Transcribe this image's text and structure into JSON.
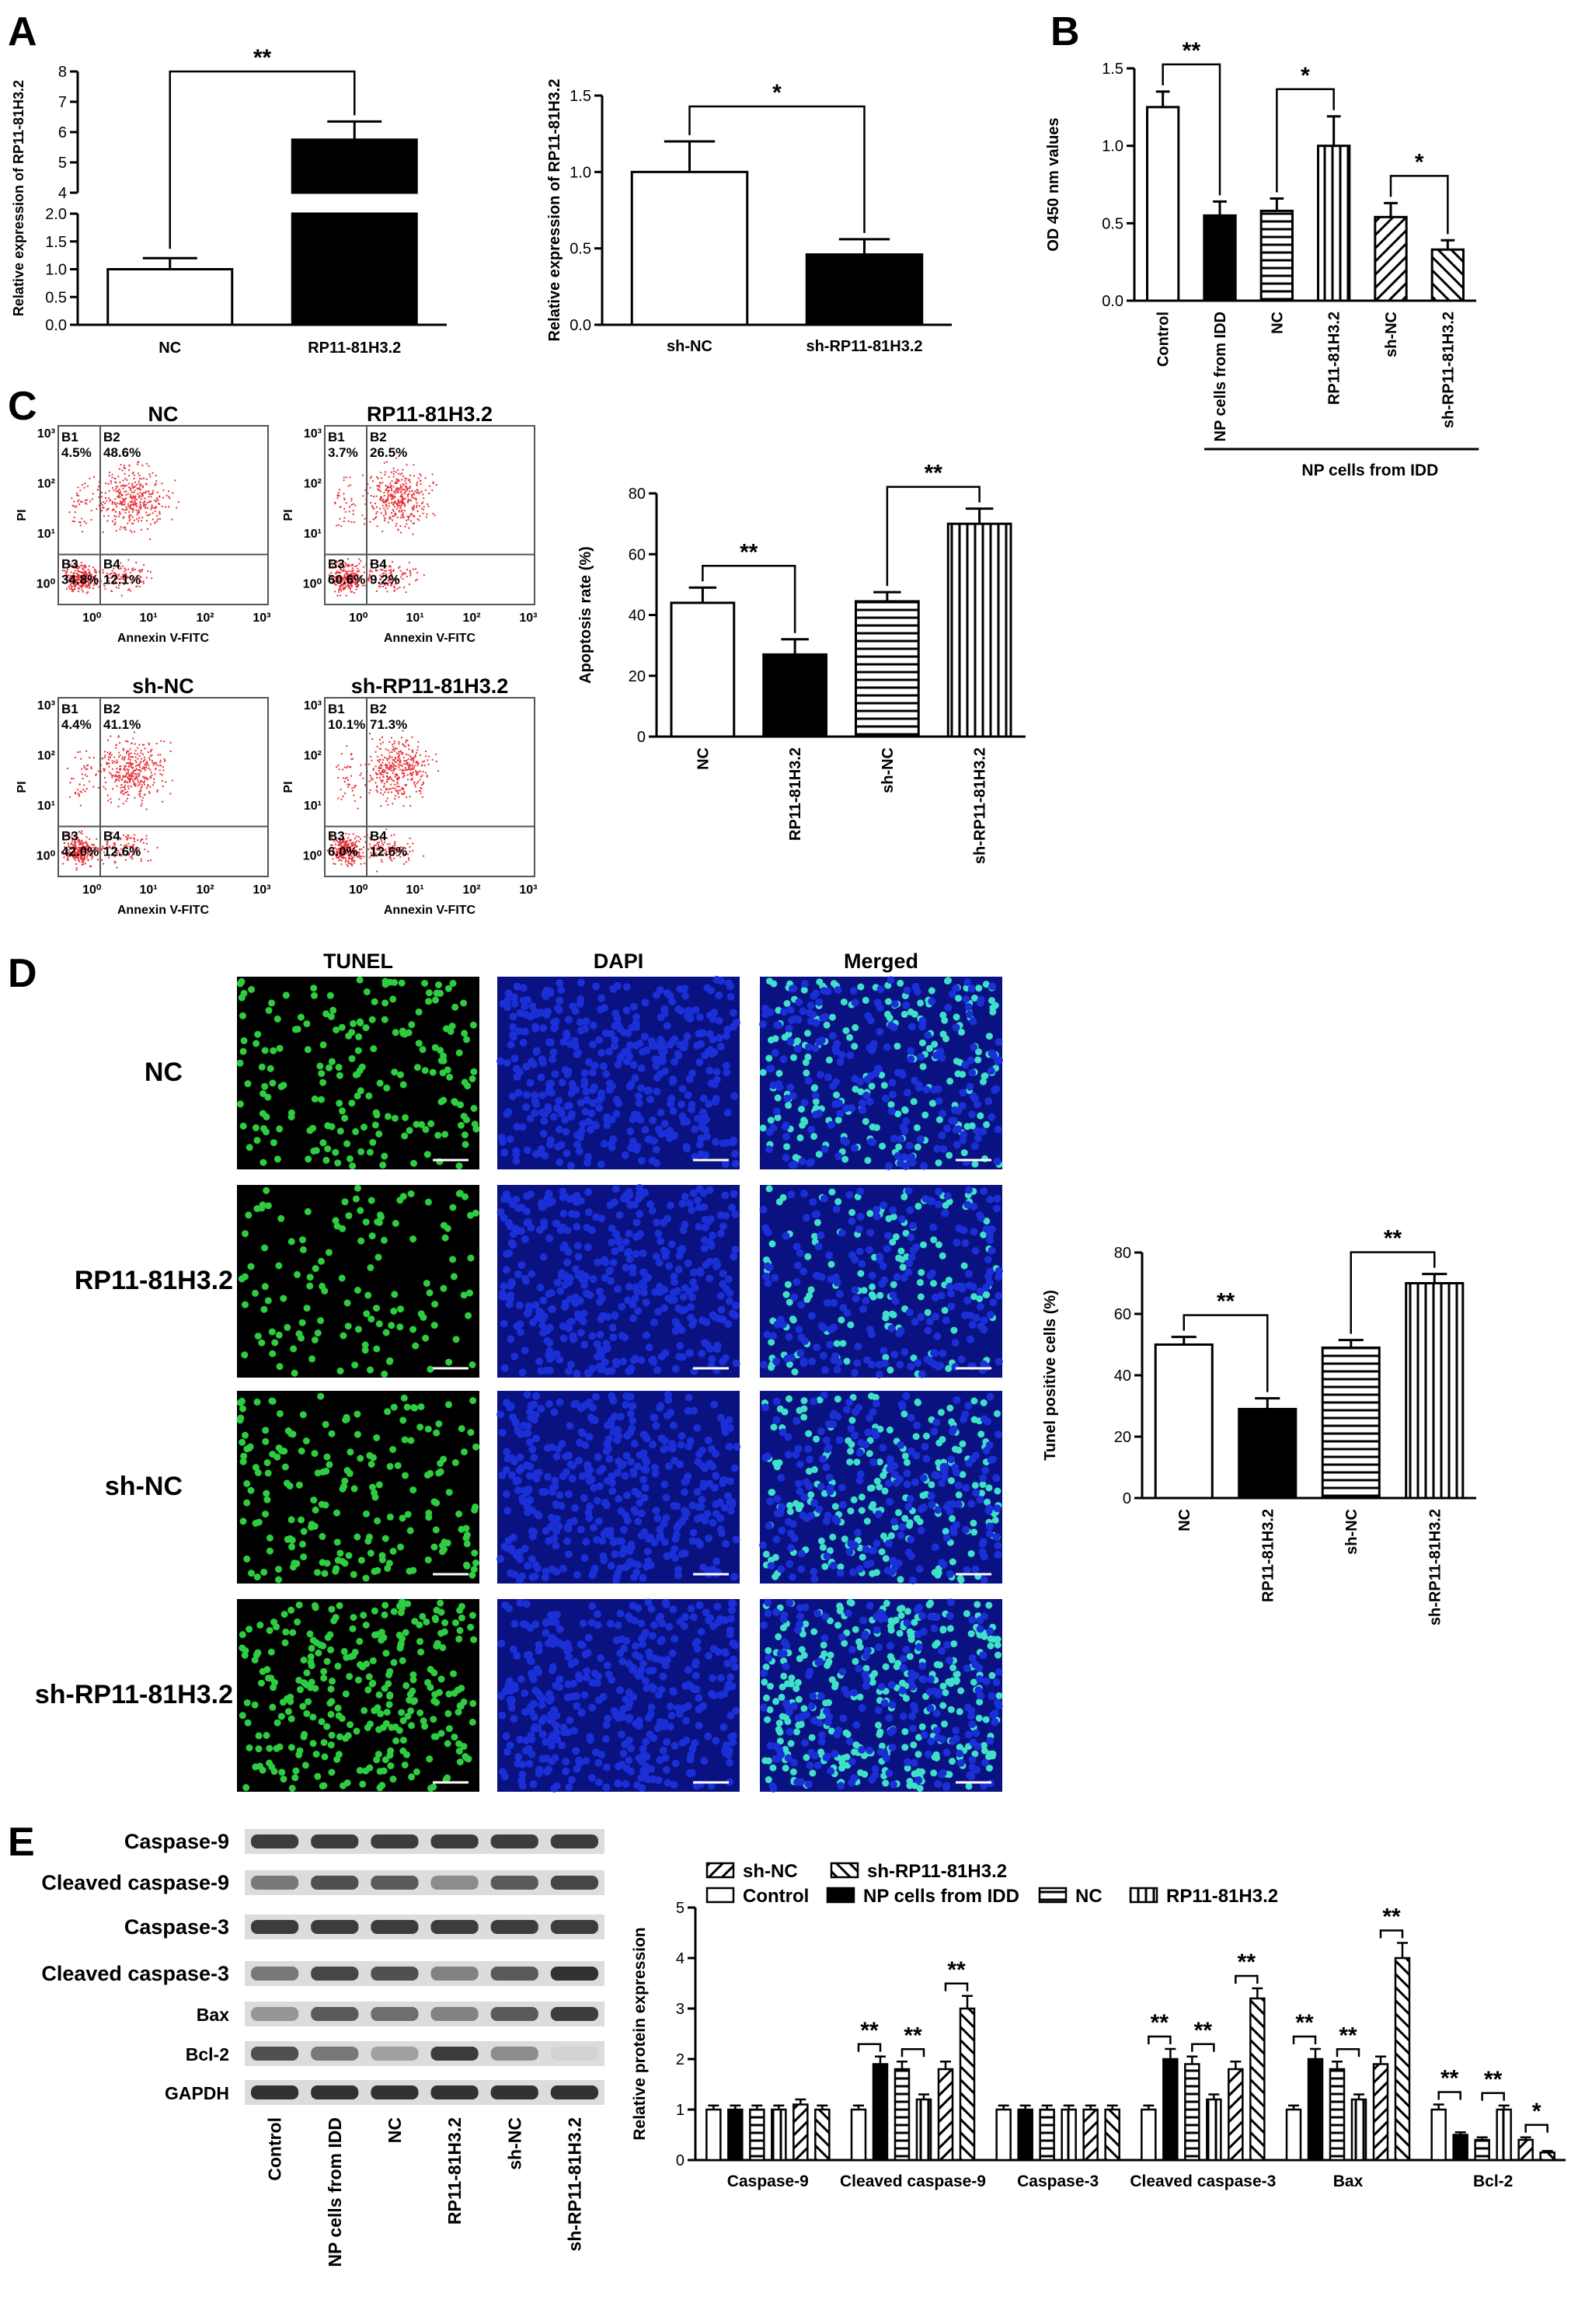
{
  "panels": {
    "A": {
      "letter": "A"
    },
    "B": {
      "letter": "B"
    },
    "C": {
      "letter": "C"
    },
    "D": {
      "letter": "D"
    },
    "E": {
      "letter": "E"
    }
  },
  "colors": {
    "black": "#000000",
    "white": "#ffffff",
    "flow_dot": "#e8333a",
    "tunel_green": "#2ecc40",
    "dapi_blue": "#1a2fd6",
    "merged_cyan": "#3fe0c8"
  },
  "chart_data": [
    {
      "id": "A1",
      "type": "bar",
      "categories": [
        "NC",
        "RP11-81H3.2"
      ],
      "values": [
        1.0,
        5.75
      ],
      "errors": [
        0.2,
        0.6
      ],
      "fills": [
        "white",
        "black"
      ],
      "ylabel": "Relative expression of RP11-81H3.2",
      "axis_break": {
        "lower": [
          0,
          2.0
        ],
        "upper": [
          4,
          8
        ]
      },
      "ticks_lower": [
        "0.0",
        "0.5",
        "1.0",
        "1.5",
        "2.0"
      ],
      "ticks_upper": [
        "4",
        "5",
        "6",
        "7",
        "8"
      ],
      "significance": [
        {
          "from": 0,
          "to": 1,
          "label": "**"
        }
      ]
    },
    {
      "id": "A2",
      "type": "bar",
      "categories": [
        "sh-NC",
        "sh-RP11-81H3.2"
      ],
      "values": [
        1.0,
        0.46
      ],
      "errors": [
        0.2,
        0.1
      ],
      "fills": [
        "white",
        "black"
      ],
      "ylabel": "Relative expression of RP11-81H3.2",
      "ylim": [
        0,
        1.5
      ],
      "ticks": [
        "0.0",
        "0.5",
        "1.0",
        "1.5"
      ],
      "significance": [
        {
          "from": 0,
          "to": 1,
          "label": "*"
        }
      ]
    },
    {
      "id": "B",
      "type": "bar",
      "categories": [
        "Control",
        "NP cells from IDD",
        "NC",
        "RP11-81H3.2",
        "sh-NC",
        "sh-RP11-81H3.2"
      ],
      "values": [
        1.25,
        0.55,
        0.58,
        1.0,
        0.54,
        0.33
      ],
      "errors": [
        0.1,
        0.09,
        0.08,
        0.19,
        0.09,
        0.06
      ],
      "fills": [
        "white",
        "black",
        "hlines",
        "vlines",
        "diag-back",
        "diag-fwd"
      ],
      "ylabel": "OD 450 nm values",
      "ylim": [
        0,
        1.5
      ],
      "ticks": [
        "0.0",
        "0.5",
        "1.0",
        "1.5"
      ],
      "group_label": "NP cells from IDD",
      "significance": [
        {
          "from": 0,
          "to": 1,
          "label": "**"
        },
        {
          "from": 2,
          "to": 3,
          "label": "*"
        },
        {
          "from": 4,
          "to": 5,
          "label": "*"
        }
      ]
    },
    {
      "id": "C",
      "type": "bar",
      "categories": [
        "NC",
        "RP11-81H3.2",
        "sh-NC",
        "sh-RP11-81H3.2"
      ],
      "values": [
        44,
        27,
        44.5,
        70
      ],
      "errors": [
        5,
        5,
        3,
        5
      ],
      "fills": [
        "white",
        "black",
        "hlines",
        "vlines"
      ],
      "ylabel": "Apoptosis rate (%)",
      "ylim": [
        0,
        80
      ],
      "ticks": [
        "0",
        "20",
        "40",
        "60",
        "80"
      ],
      "significance": [
        {
          "from": 0,
          "to": 1,
          "label": "**"
        },
        {
          "from": 2,
          "to": 3,
          "label": "**"
        }
      ]
    },
    {
      "id": "D",
      "type": "bar",
      "categories": [
        "NC",
        "RP11-81H3.2",
        "sh-NC",
        "sh-RP11-81H3.2"
      ],
      "values": [
        50,
        29,
        49,
        70
      ],
      "errors": [
        2.5,
        3.5,
        2.5,
        3
      ],
      "fills": [
        "white",
        "black",
        "hlines",
        "vlines"
      ],
      "ylabel": "Tunel positive cells (%)",
      "ylim": [
        0,
        80
      ],
      "ticks": [
        "0",
        "20",
        "40",
        "60",
        "80"
      ],
      "significance": [
        {
          "from": 0,
          "to": 1,
          "label": "**"
        },
        {
          "from": 2,
          "to": 3,
          "label": "**"
        }
      ]
    },
    {
      "id": "E",
      "type": "bar",
      "categories": [
        "Caspase-9",
        "Cleaved caspase-9",
        "Caspase-3",
        "Cleaved caspase-3",
        "Bax",
        "Bcl-2"
      ],
      "series": [
        {
          "name": "Control",
          "fill": "white",
          "values": [
            1.0,
            1.0,
            1.0,
            1.0,
            1.0,
            1.0
          ],
          "errors": [
            0.08,
            0.08,
            0.08,
            0.08,
            0.08,
            0.1
          ]
        },
        {
          "name": "NP cells from IDD",
          "fill": "black",
          "values": [
            1.0,
            1.9,
            1.0,
            2.0,
            2.0,
            0.5
          ],
          "errors": [
            0.08,
            0.15,
            0.08,
            0.2,
            0.2,
            0.05
          ]
        },
        {
          "name": "NC",
          "fill": "hlines",
          "values": [
            1.0,
            1.8,
            1.0,
            1.9,
            1.8,
            0.4
          ],
          "errors": [
            0.08,
            0.15,
            0.08,
            0.15,
            0.15,
            0.05
          ]
        },
        {
          "name": "RP11-81H3.2",
          "fill": "vlines",
          "values": [
            1.0,
            1.2,
            1.0,
            1.2,
            1.2,
            1.0
          ],
          "errors": [
            0.08,
            0.1,
            0.08,
            0.1,
            0.1,
            0.08
          ]
        },
        {
          "name": "sh-NC",
          "fill": "diag-back",
          "values": [
            1.1,
            1.8,
            1.0,
            1.8,
            1.9,
            0.4
          ],
          "errors": [
            0.1,
            0.15,
            0.08,
            0.15,
            0.15,
            0.05
          ]
        },
        {
          "name": "sh-RP11-81H3.2",
          "fill": "diag-fwd",
          "values": [
            1.0,
            3.0,
            1.0,
            3.2,
            4.0,
            0.15
          ],
          "errors": [
            0.08,
            0.25,
            0.08,
            0.2,
            0.3,
            0.03
          ]
        }
      ],
      "ylabel": "Relative protein expression",
      "ylim": [
        0,
        5
      ],
      "ticks": [
        "0",
        "1",
        "2",
        "3",
        "4",
        "5"
      ],
      "significance_pairs": [
        {
          "group": 1,
          "a": 0,
          "b": 1,
          "label": "**"
        },
        {
          "group": 1,
          "a": 2,
          "b": 3,
          "label": "**"
        },
        {
          "group": 1,
          "a": 4,
          "b": 5,
          "label": "**"
        },
        {
          "group": 3,
          "a": 0,
          "b": 1,
          "label": "**"
        },
        {
          "group": 3,
          "a": 2,
          "b": 3,
          "label": "**"
        },
        {
          "group": 3,
          "a": 4,
          "b": 5,
          "label": "**"
        },
        {
          "group": 4,
          "a": 0,
          "b": 1,
          "label": "**"
        },
        {
          "group": 4,
          "a": 2,
          "b": 3,
          "label": "**"
        },
        {
          "group": 4,
          "a": 4,
          "b": 5,
          "label": "**"
        },
        {
          "group": 5,
          "a": 0,
          "b": 1,
          "label": "**"
        },
        {
          "group": 5,
          "a": 2,
          "b": 3,
          "label": "**"
        },
        {
          "group": 5,
          "a": 4,
          "b": 5,
          "label": "*"
        }
      ]
    }
  ],
  "flow": {
    "xlabel": "Annexin V-FITC",
    "ylabel": "PI",
    "xticks": [
      "10⁰",
      "10¹",
      "10²",
      "10³"
    ],
    "yticks": [
      "10⁰",
      "10¹",
      "10²",
      "10³"
    ],
    "plots": [
      {
        "title": "NC",
        "b1": "4.5%",
        "b2": "48.6%",
        "b3": "34.8%",
        "b4": "12.1%"
      },
      {
        "title": "RP11-81H3.2",
        "b1": "3.7%",
        "b2": "26.5%",
        "b3": "60.6%",
        "b4": "9.2%"
      },
      {
        "title": "sh-NC",
        "b1": "4.4%",
        "b2": "41.1%",
        "b3": "42.0%",
        "b4": "12.6%"
      },
      {
        "title": "sh-RP11-81H3.2",
        "b1": "10.1%",
        "b2": "71.3%",
        "b3": "6.0%",
        "b4": "12.6%"
      }
    ],
    "quad_names": [
      "B1",
      "B2",
      "B3",
      "B4"
    ]
  },
  "tunel": {
    "columns": [
      "TUNEL",
      "DAPI",
      "Merged"
    ],
    "rows": [
      "NC",
      "RP11-81H3.2",
      "sh-NC",
      "sh-RP11-81H3.2"
    ]
  },
  "western": {
    "bands": [
      "Caspase-9",
      "Cleaved caspase-9",
      "Caspase-3",
      "Cleaved caspase-3",
      "Bax",
      "Bcl-2",
      "GAPDH"
    ],
    "lanes": [
      "Control",
      "NP cells from IDD",
      "NC",
      "RP11-81H3.2",
      "sh-NC",
      "sh-RP11-81H3.2"
    ]
  },
  "legend_E": {
    "row1": [
      "sh-NC",
      "sh-RP11-81H3.2"
    ],
    "row2": [
      "Control",
      "NP cells from IDD",
      "NC",
      "RP11-81H3.2"
    ]
  }
}
